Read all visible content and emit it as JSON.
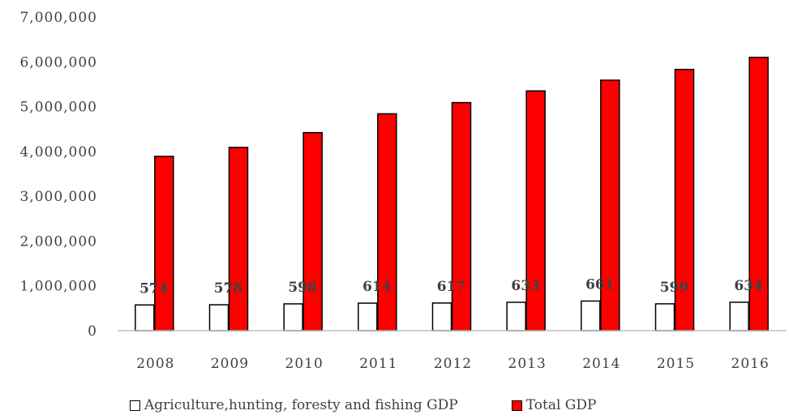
{
  "chart_data": {
    "type": "bar",
    "categories": [
      "2008",
      "2009",
      "2010",
      "2011",
      "2012",
      "2013",
      "2014",
      "2015",
      "2016"
    ],
    "series": [
      {
        "name": "Agriculture,hunting, foresty and fishing GDP",
        "values": [
          574000,
          578000,
          598000,
          614000,
          617000,
          633000,
          661000,
          599000,
          634000
        ],
        "data_labels": [
          "574",
          "578",
          "598",
          "614",
          "617",
          "633",
          "661",
          "599",
          "634"
        ],
        "color": "#ffffff"
      },
      {
        "name": "Total GDP",
        "values": [
          3890000,
          4090000,
          4420000,
          4840000,
          5090000,
          5350000,
          5590000,
          5830000,
          6100000
        ],
        "color": "#ff0000"
      }
    ],
    "y_ticks": [
      "0",
      "1,000,000",
      "2,000,000",
      "3,000,000",
      "4,000,000",
      "5,000,000",
      "6,000,000",
      "7,000,000"
    ],
    "ylim": [
      0,
      7000000
    ],
    "grid": false,
    "legend_position": "bottom"
  }
}
